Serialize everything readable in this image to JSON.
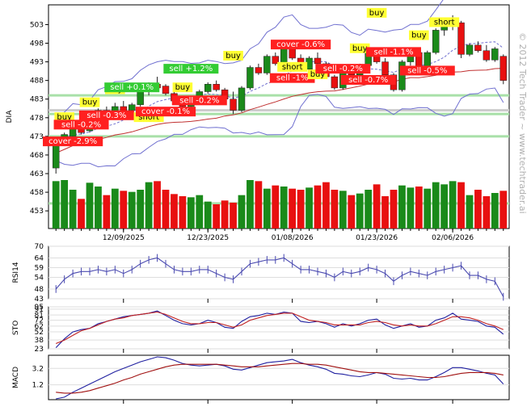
{
  "chart_data": [
    {
      "type": "candlestick",
      "ylabel": "DIA",
      "yticks": [
        453,
        458,
        463,
        468,
        473,
        478,
        483,
        488,
        493,
        498,
        503
      ],
      "ylim": [
        450,
        507
      ],
      "xticks": [
        "12/09/2025",
        "12/23/2025",
        "01/08/2026",
        "01/23/2026",
        "02/06/2026"
      ],
      "watermark": "© 2012 Tech Trader ~ www.techtrader.ai",
      "candles": [
        {
          "o": 464.5,
          "h": 472.5,
          "l": 463.0,
          "c": 471.5
        },
        {
          "o": 471.5,
          "h": 474.0,
          "l": 470.5,
          "c": 473.5
        },
        {
          "o": 473.0,
          "h": 476.0,
          "l": 472.5,
          "c": 475.5
        },
        {
          "o": 475.0,
          "h": 476.5,
          "l": 473.5,
          "c": 474.0
        },
        {
          "o": 474.5,
          "h": 477.0,
          "l": 474.0,
          "c": 476.5
        },
        {
          "o": 477.0,
          "h": 480.5,
          "l": 476.5,
          "c": 480.0
        },
        {
          "o": 480.0,
          "h": 481.0,
          "l": 478.5,
          "c": 479.0
        },
        {
          "o": 479.5,
          "h": 482.0,
          "l": 478.0,
          "c": 481.0
        },
        {
          "o": 481.0,
          "h": 482.5,
          "l": 478.5,
          "c": 479.5
        },
        {
          "o": 480.0,
          "h": 482.0,
          "l": 479.0,
          "c": 481.5
        },
        {
          "o": 481.5,
          "h": 485.5,
          "l": 481.0,
          "c": 485.0
        },
        {
          "o": 485.0,
          "h": 487.5,
          "l": 484.0,
          "c": 486.5
        },
        {
          "o": 487.0,
          "h": 489.0,
          "l": 485.5,
          "c": 486.0
        },
        {
          "o": 486.5,
          "h": 487.0,
          "l": 484.0,
          "c": 484.5
        },
        {
          "o": 484.5,
          "h": 485.0,
          "l": 482.0,
          "c": 482.5
        },
        {
          "o": 482.5,
          "h": 483.5,
          "l": 480.0,
          "c": 481.0
        },
        {
          "o": 481.0,
          "h": 483.0,
          "l": 480.0,
          "c": 482.5
        },
        {
          "o": 482.5,
          "h": 485.5,
          "l": 482.0,
          "c": 485.0
        },
        {
          "o": 485.0,
          "h": 487.5,
          "l": 484.5,
          "c": 487.0
        },
        {
          "o": 487.0,
          "h": 488.0,
          "l": 485.0,
          "c": 485.5
        },
        {
          "o": 485.5,
          "h": 486.0,
          "l": 482.5,
          "c": 483.0
        },
        {
          "o": 483.0,
          "h": 485.0,
          "l": 479.0,
          "c": 480.0
        },
        {
          "o": 480.0,
          "h": 486.5,
          "l": 479.5,
          "c": 486.0
        },
        {
          "o": 486.0,
          "h": 492.0,
          "l": 485.5,
          "c": 491.5
        },
        {
          "o": 491.5,
          "h": 492.5,
          "l": 489.5,
          "c": 490.0
        },
        {
          "o": 490.0,
          "h": 495.0,
          "l": 489.5,
          "c": 494.5
        },
        {
          "o": 494.5,
          "h": 495.5,
          "l": 492.0,
          "c": 492.5
        },
        {
          "o": 492.5,
          "h": 497.0,
          "l": 492.0,
          "c": 496.5
        },
        {
          "o": 496.5,
          "h": 497.5,
          "l": 493.5,
          "c": 494.0
        },
        {
          "o": 494.0,
          "h": 495.0,
          "l": 490.5,
          "c": 491.0
        },
        {
          "o": 491.0,
          "h": 494.5,
          "l": 490.5,
          "c": 494.0
        },
        {
          "o": 494.0,
          "h": 495.5,
          "l": 492.0,
          "c": 492.5
        },
        {
          "o": 492.5,
          "h": 493.0,
          "l": 488.5,
          "c": 489.0
        },
        {
          "o": 489.0,
          "h": 489.5,
          "l": 485.5,
          "c": 486.0
        },
        {
          "o": 486.0,
          "h": 491.0,
          "l": 485.5,
          "c": 490.5
        },
        {
          "o": 490.5,
          "h": 492.0,
          "l": 489.0,
          "c": 489.5
        },
        {
          "o": 489.5,
          "h": 492.5,
          "l": 489.0,
          "c": 492.0
        },
        {
          "o": 492.0,
          "h": 496.0,
          "l": 491.5,
          "c": 495.5
        },
        {
          "o": 495.5,
          "h": 496.5,
          "l": 492.5,
          "c": 493.0
        },
        {
          "o": 493.0,
          "h": 494.0,
          "l": 489.0,
          "c": 489.5
        },
        {
          "o": 489.5,
          "h": 490.0,
          "l": 485.0,
          "c": 485.5
        },
        {
          "o": 485.5,
          "h": 493.5,
          "l": 485.0,
          "c": 493.0
        },
        {
          "o": 493.0,
          "h": 496.0,
          "l": 492.0,
          "c": 495.5
        },
        {
          "o": 495.5,
          "h": 496.5,
          "l": 490.5,
          "c": 491.0
        },
        {
          "o": 491.0,
          "h": 496.0,
          "l": 490.5,
          "c": 495.5
        },
        {
          "o": 495.5,
          "h": 502.0,
          "l": 495.0,
          "c": 501.5
        },
        {
          "o": 501.5,
          "h": 503.0,
          "l": 500.0,
          "c": 502.5
        },
        {
          "o": 502.5,
          "h": 505.5,
          "l": 501.5,
          "c": 504.5
        },
        {
          "o": 503.5,
          "h": 504.0,
          "l": 494.0,
          "c": 495.0
        },
        {
          "o": 495.0,
          "h": 498.0,
          "l": 494.5,
          "c": 497.5
        },
        {
          "o": 497.5,
          "h": 498.5,
          "l": 495.5,
          "c": 496.0
        },
        {
          "o": 496.0,
          "h": 497.5,
          "l": 493.0,
          "c": 493.5
        },
        {
          "o": 493.5,
          "h": 497.0,
          "l": 493.0,
          "c": 496.5
        },
        {
          "o": 494.5,
          "h": 495.0,
          "l": 487.0,
          "c": 488.0
        }
      ],
      "volume": [
        88,
        90,
        72,
        55,
        85,
        78,
        62,
        74,
        70,
        68,
        72,
        86,
        88,
        72,
        64,
        60,
        58,
        62,
        50,
        45,
        52,
        48,
        62,
        90,
        88,
        74,
        80,
        78,
        74,
        72,
        76,
        80,
        86,
        72,
        70,
        62,
        65,
        72,
        82,
        60,
        72,
        80,
        76,
        78,
        74,
        86,
        82,
        88,
        86,
        62,
        72,
        60,
        66,
        70
      ]
    },
    {
      "type": "line",
      "ylabel": "RSI14",
      "yticks": [
        43,
        48,
        54,
        59,
        64,
        70
      ]
    },
    {
      "type": "line",
      "ylabel": "STO",
      "yticks": [
        23,
        38,
        52,
        62,
        72,
        81,
        91,
        95
      ]
    },
    {
      "type": "line",
      "ylabel": "MACD",
      "yticks": [
        1.2,
        3.2
      ]
    }
  ],
  "signals": [
    {
      "text": "buy",
      "bg": "#ffff33",
      "i": 1,
      "p": 477.5
    },
    {
      "text": "cover -2.9%",
      "bg": "#ff2020",
      "i": 2,
      "p": 471.0
    },
    {
      "text": "sell -0.2%",
      "bg": "#ff2020",
      "i": 3,
      "p": 475.5
    },
    {
      "text": "buy",
      "bg": "#ffff33",
      "i": 4,
      "p": 481.5
    },
    {
      "text": "sell -0.3%",
      "bg": "#ff2020",
      "i": 6,
      "p": 478.0
    },
    {
      "text": "buy",
      "bg": "#ffff33",
      "i": 7,
      "p": 485.0
    },
    {
      "text": "sell +0.1%",
      "bg": "#33cc33",
      "i": 9,
      "p": 485.5
    },
    {
      "text": "short",
      "bg": "#ffff33",
      "i": 11,
      "p": 477.5
    },
    {
      "text": "cover -0.1%",
      "bg": "#ff2020",
      "i": 13,
      "p": 479.0
    },
    {
      "text": "buy",
      "bg": "#ffff33",
      "i": 15,
      "p": 485.5
    },
    {
      "text": "sell +1.2%",
      "bg": "#33cc33",
      "i": 16,
      "p": 490.5
    },
    {
      "text": "sell -0.2%",
      "bg": "#ff2020",
      "i": 17,
      "p": 482.0
    },
    {
      "text": "buy",
      "bg": "#ffff33",
      "i": 21,
      "p": 494.0
    },
    {
      "text": "cover -0.6%",
      "bg": "#ff2020",
      "i": 29,
      "p": 497.0
    },
    {
      "text": "short",
      "bg": "#ffff33",
      "i": 28,
      "p": 491.0
    },
    {
      "text": "sell -1%",
      "bg": "#ff2020",
      "i": 28,
      "p": 488.0
    },
    {
      "text": "buy",
      "bg": "#ffff33",
      "i": 31,
      "p": 489.0
    },
    {
      "text": "buy",
      "bg": "#ffff33",
      "i": 36,
      "p": 496.0
    },
    {
      "text": "sell -0.2%",
      "bg": "#ff2020",
      "i": 34,
      "p": 490.5
    },
    {
      "text": "sell -0.7%",
      "bg": "#ff2020",
      "i": 37,
      "p": 487.5
    },
    {
      "text": "buy",
      "bg": "#ffff33",
      "i": 38,
      "p": 505.5
    },
    {
      "text": "short",
      "bg": "#ffff33",
      "i": 46,
      "p": 503.0
    },
    {
      "text": "buy",
      "bg": "#ffff33",
      "i": 43,
      "p": 499.5
    },
    {
      "text": "sell -1.1%",
      "bg": "#ff2020",
      "i": 40,
      "p": 495.0
    },
    {
      "text": "sell -0.5%",
      "bg": "#ff2020",
      "i": 44,
      "p": 490.0
    }
  ],
  "indicators": {
    "rsi": [
      48,
      53,
      56,
      57,
      57,
      58,
      57,
      58,
      56,
      58,
      61,
      63,
      64,
      61,
      58,
      57,
      57,
      58,
      58,
      56,
      54,
      53,
      57,
      61,
      62,
      63,
      63,
      64,
      61,
      58,
      58,
      57,
      56,
      54,
      57,
      56,
      57,
      59,
      58,
      56,
      52,
      55,
      57,
      56,
      55,
      57,
      58,
      59,
      60,
      55,
      55,
      53,
      52,
      44
    ],
    "sto_k": [
      25,
      40,
      52,
      56,
      58,
      66,
      70,
      74,
      78,
      80,
      82,
      84,
      88,
      80,
      72,
      66,
      64,
      66,
      72,
      68,
      60,
      58,
      70,
      78,
      80,
      84,
      82,
      86,
      84,
      70,
      68,
      70,
      66,
      60,
      66,
      62,
      66,
      72,
      74,
      64,
      58,
      62,
      66,
      60,
      62,
      72,
      76,
      84,
      74,
      72,
      70,
      62,
      60,
      48
    ],
    "sto_d": [
      32,
      38,
      46,
      54,
      58,
      64,
      70,
      74,
      76,
      80,
      82,
      84,
      86,
      82,
      76,
      70,
      66,
      66,
      68,
      68,
      64,
      60,
      64,
      72,
      76,
      80,
      82,
      84,
      84,
      78,
      72,
      70,
      68,
      64,
      64,
      64,
      64,
      68,
      70,
      68,
      64,
      62,
      64,
      62,
      62,
      66,
      72,
      78,
      78,
      76,
      72,
      66,
      62,
      56
    ],
    "macd": [
      -0.5,
      -0.3,
      0.3,
      0.8,
      1.3,
      1.8,
      2.3,
      2.8,
      3.2,
      3.6,
      4.0,
      4.3,
      4.6,
      4.5,
      4.2,
      3.8,
      3.6,
      3.5,
      3.6,
      3.7,
      3.5,
      3.1,
      3.0,
      3.3,
      3.6,
      3.9,
      4.0,
      4.1,
      4.3,
      3.9,
      3.6,
      3.4,
      3.1,
      2.6,
      2.5,
      2.3,
      2.2,
      2.4,
      2.7,
      2.5,
      2.0,
      1.9,
      2.0,
      1.8,
      1.8,
      2.2,
      2.7,
      3.3,
      3.3,
      3.1,
      2.9,
      2.6,
      2.4,
      1.3
    ],
    "signal": [
      0.3,
      0.2,
      0.2,
      0.3,
      0.5,
      0.8,
      1.1,
      1.4,
      1.8,
      2.1,
      2.5,
      2.8,
      3.1,
      3.4,
      3.6,
      3.7,
      3.7,
      3.7,
      3.7,
      3.7,
      3.6,
      3.5,
      3.4,
      3.4,
      3.4,
      3.5,
      3.6,
      3.7,
      3.8,
      3.8,
      3.7,
      3.7,
      3.6,
      3.4,
      3.2,
      3.0,
      2.8,
      2.7,
      2.7,
      2.6,
      2.5,
      2.4,
      2.3,
      2.2,
      2.1,
      2.1,
      2.2,
      2.4,
      2.6,
      2.7,
      2.7,
      2.7,
      2.6,
      2.4
    ]
  }
}
